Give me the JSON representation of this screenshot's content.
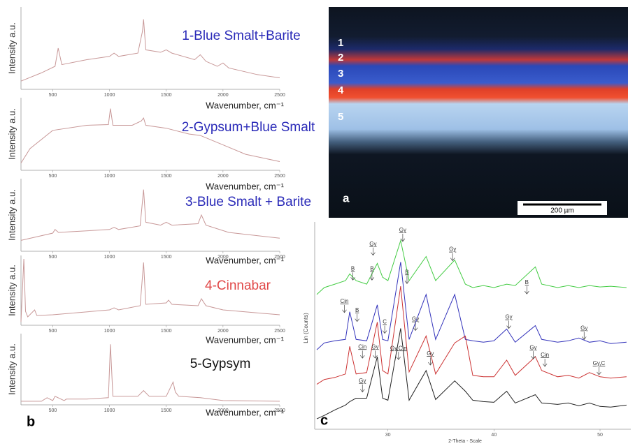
{
  "micrograph": {
    "layer_labels": [
      "1",
      "2",
      "3",
      "4",
      "5"
    ],
    "panel_label": "a",
    "scale_bar": "200 µm"
  },
  "chart_data": [
    {
      "type": "line",
      "title": "1-Blue Smalt+Barite",
      "title_color": "#2a2ab8",
      "y_label": "Intensity a.u.",
      "x_label": "Wavenumber, cm⁻¹",
      "color": "#c89898",
      "x": [
        220,
        400,
        520,
        548,
        580,
        800,
        1000,
        1040,
        1080,
        1250,
        1290,
        1300,
        1320,
        1450,
        1500,
        1550,
        1750,
        1800,
        1850,
        1950,
        2000,
        2050,
        2300,
        2500
      ],
      "values": [
        10,
        20,
        28,
        50,
        30,
        36,
        40,
        44,
        40,
        44,
        70,
        85,
        48,
        45,
        48,
        44,
        36,
        42,
        34,
        28,
        32,
        26,
        18,
        14
      ],
      "xlim": [
        220,
        2500
      ],
      "ylim": [
        0,
        100
      ],
      "xticks": [
        500,
        1000,
        1500,
        2000,
        2500
      ]
    },
    {
      "type": "line",
      "title": "2-Gypsum+Blue Smalt",
      "title_color": "#2a2ab8",
      "y_label": "Intensity a.u.",
      "x_label": "Wavenumber, cm⁻¹",
      "color": "#c89898",
      "x": [
        220,
        300,
        500,
        800,
        990,
        1008,
        1030,
        1200,
        1280,
        1300,
        1320,
        1500,
        1700,
        1800,
        2000,
        2200,
        2500
      ],
      "values": [
        10,
        30,
        55,
        62,
        63,
        85,
        62,
        62,
        68,
        72,
        62,
        58,
        50,
        48,
        35,
        22,
        12
      ],
      "xlim": [
        220,
        2500
      ],
      "ylim": [
        0,
        100
      ],
      "xticks": [
        500,
        1000,
        1500,
        2000,
        2500
      ]
    },
    {
      "type": "line",
      "title": "3-Blue Smalt + Barite",
      "title_color": "#2a2ab8",
      "y_label": "Intensity a.u.",
      "x_label": "Wavenumber, cm⁻¹",
      "color": "#c89898",
      "x": [
        220,
        500,
        520,
        550,
        1000,
        1040,
        1080,
        1270,
        1300,
        1320,
        1450,
        1500,
        1550,
        1780,
        1810,
        1850,
        2050,
        2500
      ],
      "values": [
        15,
        25,
        30,
        26,
        30,
        33,
        30,
        35,
        85,
        40,
        36,
        40,
        36,
        38,
        50,
        36,
        26,
        18
      ],
      "xlim": [
        220,
        2500
      ],
      "ylim": [
        0,
        100
      ],
      "xticks": [
        500,
        1000,
        1500,
        2000,
        2500
      ]
    },
    {
      "type": "line",
      "title": "4-Cinnabar",
      "title_color": "#e04848",
      "y_label": "Intensity a.u.",
      "x_label": "Wavenumber, cm⁻¹",
      "color": "#c89898",
      "x": [
        220,
        245,
        260,
        280,
        340,
        360,
        500,
        1000,
        1040,
        1080,
        1270,
        1300,
        1320,
        1500,
        1520,
        1550,
        1780,
        1810,
        1850,
        2000,
        2500
      ],
      "values": [
        5,
        95,
        20,
        12,
        22,
        14,
        15,
        22,
        25,
        22,
        28,
        90,
        30,
        32,
        36,
        30,
        28,
        38,
        28,
        22,
        15
      ],
      "xlim": [
        220,
        2500
      ],
      "ylim": [
        0,
        100
      ],
      "xticks": [
        500,
        1000,
        1500,
        2000,
        2500
      ]
    },
    {
      "type": "line",
      "title": "5-Gypsym",
      "title_color": "#111111",
      "y_label": "Intensity a.u.",
      "x_label": "Wavenumber, cm⁻¹",
      "color": "#c89898",
      "panel_label": "b",
      "x": [
        220,
        400,
        450,
        500,
        520,
        600,
        620,
        800,
        990,
        1008,
        1030,
        1250,
        1300,
        1350,
        1500,
        1560,
        1580,
        1610,
        1800,
        2000,
        2500
      ],
      "values": [
        5,
        5,
        10,
        6,
        12,
        6,
        8,
        8,
        10,
        85,
        12,
        12,
        20,
        12,
        12,
        32,
        18,
        12,
        10,
        6,
        5
      ],
      "xlim": [
        220,
        2500
      ],
      "ylim": [
        0,
        100
      ],
      "xticks": [
        500,
        1000,
        1500,
        2000,
        2500
      ]
    },
    {
      "type": "line",
      "y_label": "Lin (Counts)",
      "x_label": "2-Theta - Scale",
      "panel_label": "c",
      "x": [
        23.3,
        24,
        25,
        26,
        26.4,
        27,
        28,
        29.0,
        29.5,
        30,
        31.2,
        32,
        33.6,
        34.5,
        36.3,
        37.3,
        38,
        39,
        40,
        41.2,
        42,
        43.9,
        44.5,
        46,
        47,
        48,
        49,
        50,
        51,
        52.5
      ],
      "series": [
        {
          "color": "#44cc44",
          "values": [
            19.5,
            20.5,
            21,
            21.5,
            22.5,
            21.5,
            21,
            24,
            22,
            21.5,
            27.3,
            21.5,
            25,
            21.5,
            24.5,
            21,
            20.5,
            20.8,
            20.5,
            21,
            20.8,
            23.5,
            21,
            20.5,
            20.8,
            20.5,
            20.8,
            20.6,
            20.7,
            20.5
          ]
        },
        {
          "color": "#3333bb",
          "values": [
            11.5,
            12.5,
            12.8,
            13,
            17,
            13,
            12.8,
            18,
            13,
            12.8,
            24.2,
            13,
            19.5,
            13,
            19.5,
            13,
            12.8,
            12.6,
            12.8,
            14.5,
            12.6,
            15,
            13,
            12.6,
            12.8,
            13.2,
            12.6,
            12.8,
            12.4,
            12.6
          ]
        },
        {
          "color": "#cc3333",
          "values": [
            6.5,
            7.2,
            7.5,
            8,
            12,
            8,
            8.2,
            15.5,
            8.5,
            8,
            20.7,
            8.3,
            13.5,
            8,
            12.5,
            13.5,
            7.8,
            7.6,
            7.6,
            10,
            7.8,
            10.5,
            8.5,
            7.6,
            7.8,
            7.4,
            8.2,
            7.6,
            7.4,
            7.6
          ]
        },
        {
          "color": "#222222",
          "values": [
            1.5,
            2,
            2.8,
            3.5,
            4,
            4.5,
            4.5,
            10.5,
            4.5,
            4.2,
            14.6,
            4.2,
            8.5,
            4.3,
            7,
            5.5,
            4.2,
            4,
            3.9,
            5.5,
            3.8,
            5,
            3.8,
            3.6,
            3.8,
            3.4,
            3.8,
            3.3,
            3.2,
            3.5
          ]
        }
      ],
      "annotations": [
        {
          "text": "B",
          "x": 26.7,
          "y": 23.2
        },
        {
          "text": "B",
          "x": 28.5,
          "y": 23.2
        },
        {
          "text": "Gy",
          "x": 28.6,
          "y": 26.8
        },
        {
          "text": "Gy",
          "x": 31.4,
          "y": 28.8
        },
        {
          "text": "B",
          "x": 31.8,
          "y": 22.7
        },
        {
          "text": "Gy",
          "x": 36.1,
          "y": 26.0
        },
        {
          "text": "B",
          "x": 43.1,
          "y": 21.2
        },
        {
          "text": "Cin",
          "x": 25.9,
          "y": 18.5
        },
        {
          "text": "B",
          "x": 27.1,
          "y": 17.2
        },
        {
          "text": "C",
          "x": 29.7,
          "y": 15.5
        },
        {
          "text": "Gy",
          "x": 32.6,
          "y": 15.9
        },
        {
          "text": "Gy",
          "x": 41.4,
          "y": 16.2
        },
        {
          "text": "Gy",
          "x": 48.5,
          "y": 14.6
        },
        {
          "text": "Cin",
          "x": 27.6,
          "y": 11.9
        },
        {
          "text": "Gy",
          "x": 28.8,
          "y": 11.9
        },
        {
          "text": "Gy,Cin",
          "x": 31.0,
          "y": 11.7
        },
        {
          "text": "Gy",
          "x": 34.0,
          "y": 10.9
        },
        {
          "text": "Gy",
          "x": 43.7,
          "y": 11.8
        },
        {
          "text": "Cin",
          "x": 44.8,
          "y": 10.7
        },
        {
          "text": "Gy,C",
          "x": 49.9,
          "y": 9.5
        },
        {
          "text": "Gy",
          "x": 27.6,
          "y": 7.0
        }
      ],
      "xlim": [
        23.1,
        52.9
      ],
      "ylim": [
        0,
        30
      ],
      "xticks": [
        30,
        40,
        50
      ]
    }
  ]
}
